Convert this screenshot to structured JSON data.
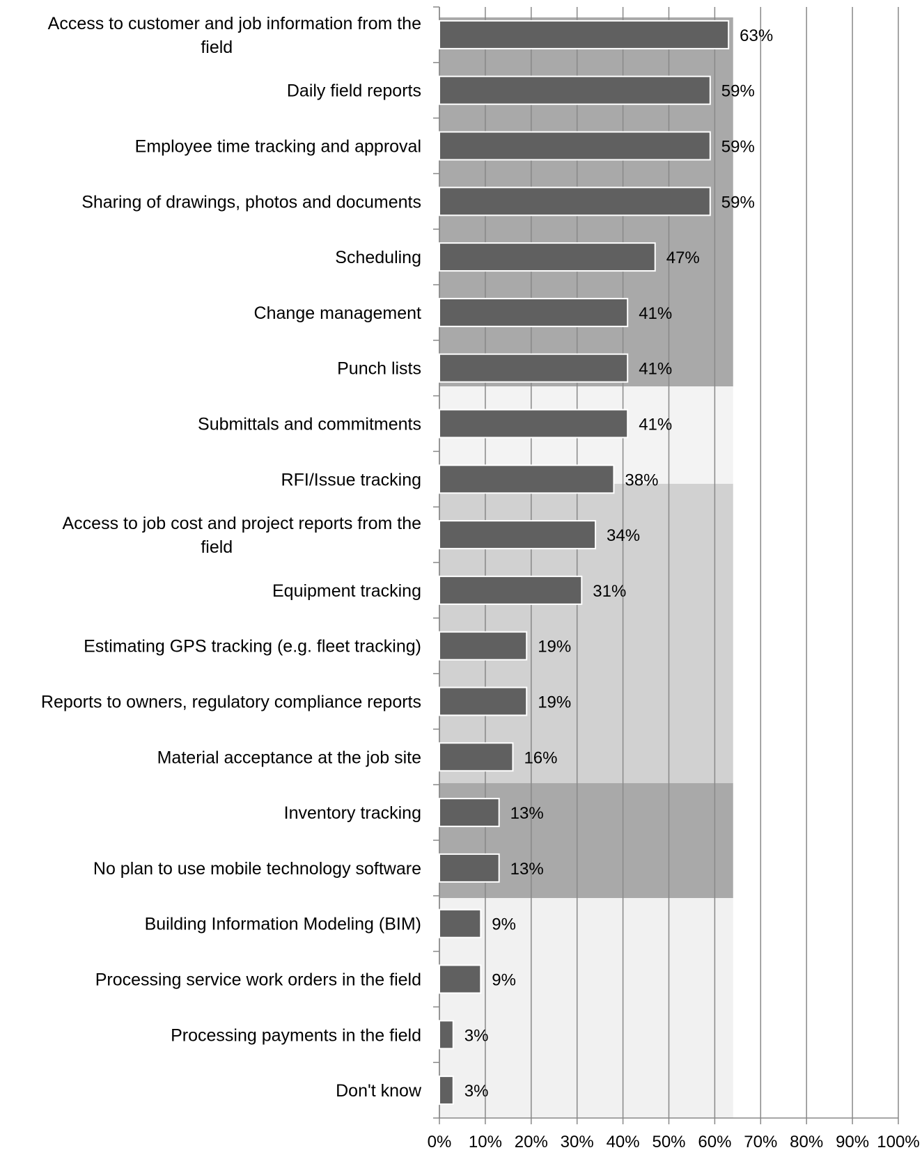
{
  "chart_data": {
    "type": "bar",
    "orientation": "horizontal",
    "categories": [
      "Access to customer and job information from the field",
      "Daily field reports",
      "Employee time tracking and approval",
      "Sharing of drawings, photos and documents",
      "Scheduling",
      "Change management",
      "Punch lists",
      "Submittals and commitments",
      "RFI/Issue tracking",
      "Access to job cost and project reports from the field",
      "Equipment tracking",
      "Estimating GPS tracking (e.g. fleet tracking)",
      "Reports to owners, regulatory compliance reports",
      "Material acceptance at the job site",
      "Inventory tracking",
      "No plan to use mobile technology software",
      "Building Information Modeling (BIM)",
      "Processing service work orders in the field",
      "Processing payments in the field",
      "Don't know"
    ],
    "values": [
      63,
      59,
      59,
      59,
      47,
      41,
      41,
      41,
      38,
      34,
      31,
      19,
      19,
      16,
      13,
      13,
      9,
      9,
      3,
      3
    ],
    "data_labels": [
      "63%",
      "59%",
      "59%",
      "59%",
      "47%",
      "41%",
      "41%",
      "41%",
      "38%",
      "34%",
      "31%",
      "19%",
      "19%",
      "16%",
      "13%",
      "13%",
      "9%",
      "9%",
      "3%",
      "3%"
    ],
    "x_ticks": [
      "0%",
      "10%",
      "20%",
      "30%",
      "40%",
      "50%",
      "60%",
      "70%",
      "80%",
      "90%",
      "100%"
    ],
    "xlim": [
      0,
      100
    ],
    "title": "",
    "xlabel": "",
    "ylabel": "",
    "grid": true,
    "legend": "none",
    "colors": {
      "bar_fill": "#606060",
      "bar_stroke": "#ffffff",
      "gridline": "#888888",
      "axis": "#888888",
      "text": "#000000"
    }
  }
}
